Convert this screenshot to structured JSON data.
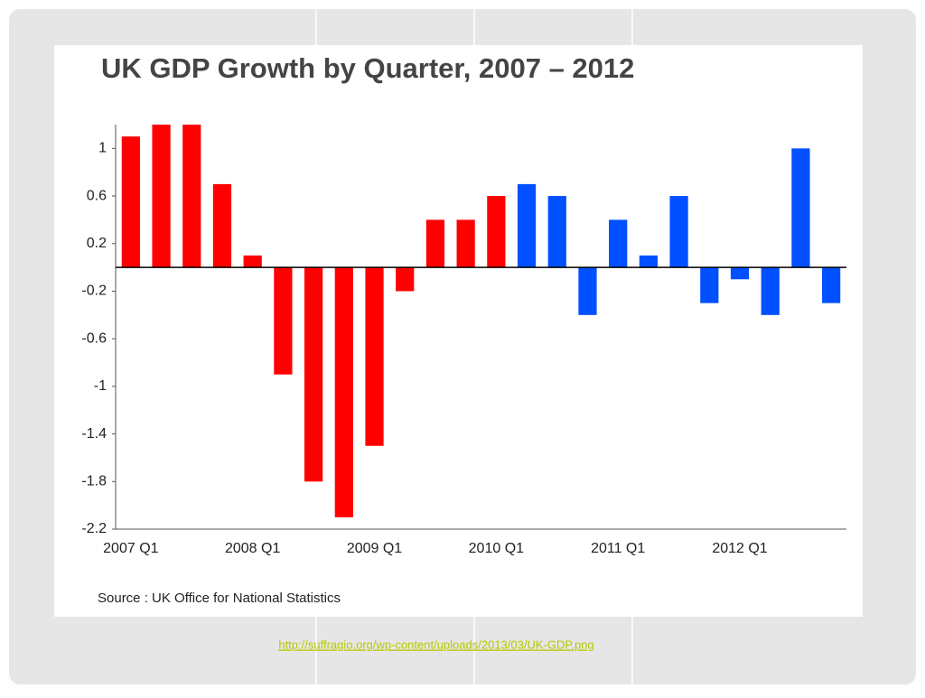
{
  "chart_data": {
    "type": "bar",
    "title": "UK GDP Growth by Quarter, 2007 – 2012",
    "categories": [
      "2007 Q1",
      null,
      null,
      null,
      "2008 Q1",
      null,
      null,
      null,
      "2009 Q1",
      null,
      null,
      null,
      "2010 Q1",
      null,
      null,
      null,
      "2011 Q1",
      null,
      null,
      null,
      "2012 Q1",
      null,
      null,
      null
    ],
    "values": [
      1.1,
      1.2,
      1.2,
      0.7,
      0.1,
      -0.9,
      -1.8,
      -2.1,
      -1.5,
      -0.2,
      0.4,
      0.4,
      0.6,
      0.7,
      0.6,
      -0.4,
      0.4,
      0.1,
      0.6,
      -0.3,
      -0.1,
      -0.4,
      1.0,
      -0.3
    ],
    "colors": [
      "#ff0000",
      "#ff0000",
      "#ff0000",
      "#ff0000",
      "#ff0000",
      "#ff0000",
      "#ff0000",
      "#ff0000",
      "#ff0000",
      "#ff0000",
      "#ff0000",
      "#ff0000",
      "#ff0000",
      "#0050ff",
      "#0050ff",
      "#0050ff",
      "#0050ff",
      "#0050ff",
      "#0050ff",
      "#0050ff",
      "#0050ff",
      "#0050ff",
      "#0050ff",
      "#0050ff"
    ],
    "ylim": [
      -2.2,
      1.2
    ],
    "yticks": [
      1,
      0.6,
      0.2,
      -0.2,
      -0.6,
      -1,
      -1.4,
      -1.8,
      -2.2
    ],
    "source": "Source : UK Office for National Statistics"
  },
  "link": "http://suffragio.org/wp-content/uploads/2013/03/UK-GDP.png"
}
